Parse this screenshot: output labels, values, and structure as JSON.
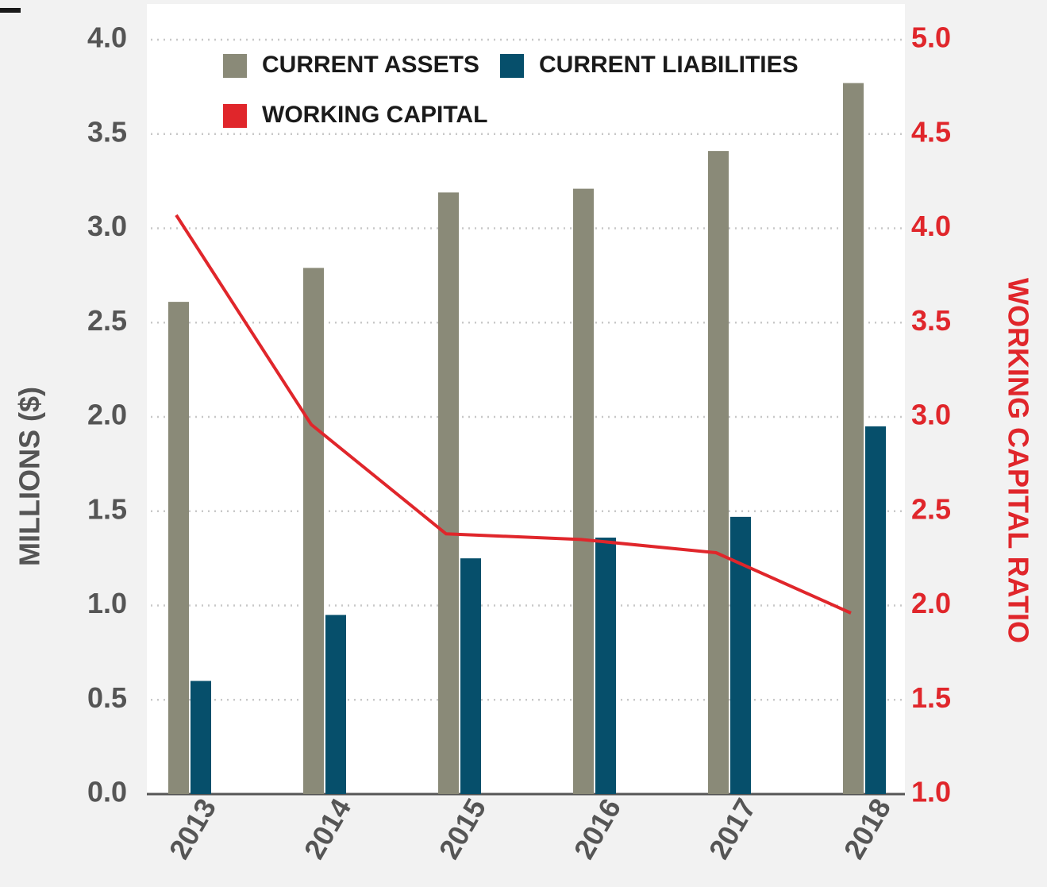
{
  "chart_data": {
    "type": "bar",
    "categories": [
      "2013",
      "2014",
      "2015",
      "2016",
      "2017",
      "2018"
    ],
    "series": [
      {
        "name": "CURRENT ASSETS",
        "color": "#8a8a78",
        "values": [
          2.61,
          2.79,
          3.19,
          3.21,
          3.41,
          3.77
        ]
      },
      {
        "name": "CURRENT LIABILITIES",
        "color": "#064f6b",
        "values": [
          0.6,
          0.95,
          1.25,
          1.36,
          1.47,
          1.95
        ]
      },
      {
        "name": "WORKING CAPITAL",
        "color": "#e0262b",
        "type": "line",
        "axis": "y2",
        "values": [
          4.07,
          2.96,
          2.38,
          2.35,
          2.28,
          1.96
        ]
      }
    ],
    "y_label": "MILLIONS ($)",
    "y2_label": "WORKING CAPITAL RATIO",
    "ylim": [
      0,
      4
    ],
    "yticks": [
      {
        "value": 0,
        "label": "0.0"
      },
      0.5,
      {
        "value": 1,
        "label": "1.0"
      },
      1.5,
      {
        "value": 2,
        "label": "2.0"
      },
      2.5,
      {
        "value": 3,
        "label": "3.0"
      },
      3.5,
      {
        "value": 4,
        "label": "4.0"
      }
    ],
    "y2lim": [
      1,
      5
    ],
    "y2ticks": [
      {
        "value": 1,
        "label": "1.0"
      },
      1.5,
      {
        "value": 2,
        "label": "2.0"
      },
      2.5,
      {
        "value": 3,
        "label": "3.0"
      },
      3.5,
      {
        "value": 4,
        "label": "4.0"
      },
      4.5,
      {
        "value": 5,
        "label": "5.0"
      }
    ],
    "grid": true
  }
}
